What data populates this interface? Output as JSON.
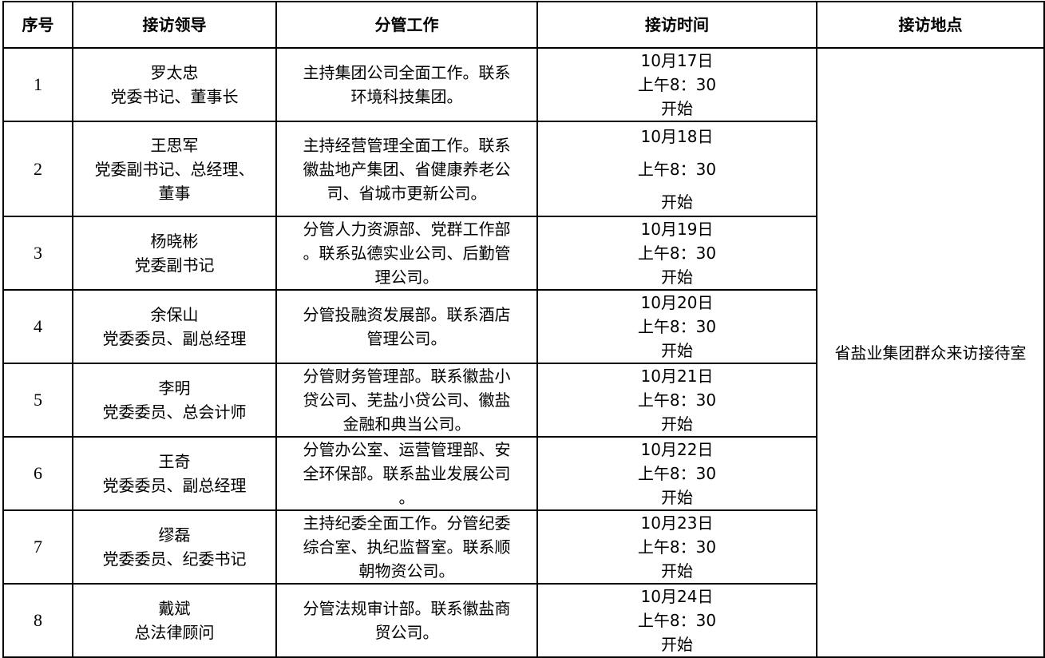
{
  "headers": [
    "序号",
    "接访领导",
    "分管工作",
    "接访时间",
    "接访地点"
  ],
  "location": "省盐业集团群众来访接待室",
  "rows": [
    {
      "no": "1",
      "leader": [
        "罗太忠",
        "党委书记、董事长"
      ],
      "work": [
        "主持集团公司全面工作。联系",
        "环境科技集团。"
      ],
      "time": [
        "10月17日",
        "上午8：30",
        "开始"
      ]
    },
    {
      "no": "2",
      "leader": [
        "王思军",
        "党委副书记、总经理、",
        "董事"
      ],
      "work": [
        "主持经营管理全面工作。联系",
        "徽盐地产集团、省健康养老公",
        "司、省城市更新公司。"
      ],
      "time": [
        "10月18日",
        "上午8：30",
        "开始"
      ]
    },
    {
      "no": "3",
      "leader": [
        "杨晓彬",
        "党委副书记"
      ],
      "work": [
        "分管人力资源部、党群工作部",
        "。联系弘德实业公司、后勤管",
        "理公司。"
      ],
      "time": [
        "10月19日",
        "上午8：30",
        "开始"
      ]
    },
    {
      "no": "4",
      "leader": [
        "余保山",
        "党委委员、副总经理"
      ],
      "work": [
        "分管投融资发展部。联系酒店",
        "管理公司。"
      ],
      "time": [
        "10月20日",
        "上午8：30",
        "开始"
      ]
    },
    {
      "no": "5",
      "leader": [
        "李明",
        "党委委员、总会计师"
      ],
      "work": [
        "分管财务管理部。联系徽盐小",
        "贷公司、芜盐小贷公司、徽盐",
        "金融和典当公司。"
      ],
      "time": [
        "10月21日",
        "上午8：30",
        "开始"
      ]
    },
    {
      "no": "6",
      "leader": [
        "王奇",
        "党委委员、副总经理"
      ],
      "work": [
        "分管办公室、运营管理部、安",
        "全环保部。联系盐业发展公司",
        "。"
      ],
      "time": [
        "10月22日",
        "上午8：30",
        "开始"
      ]
    },
    {
      "no": "7",
      "leader": [
        "缪磊",
        "党委委员、纪委书记"
      ],
      "work": [
        "主持纪委全面工作。分管纪委",
        "综合室、执纪监督室。联系顺",
        "朝物资公司。"
      ],
      "time": [
        "10月23日",
        "上午8：30",
        "开始"
      ]
    },
    {
      "no": "8",
      "leader": [
        "戴斌",
        "总法律顾问"
      ],
      "work": [
        "分管法规审计部。联系徽盐商",
        "贸公司。"
      ],
      "time": [
        "10月24日",
        "上午8：30",
        "开始"
      ]
    }
  ]
}
